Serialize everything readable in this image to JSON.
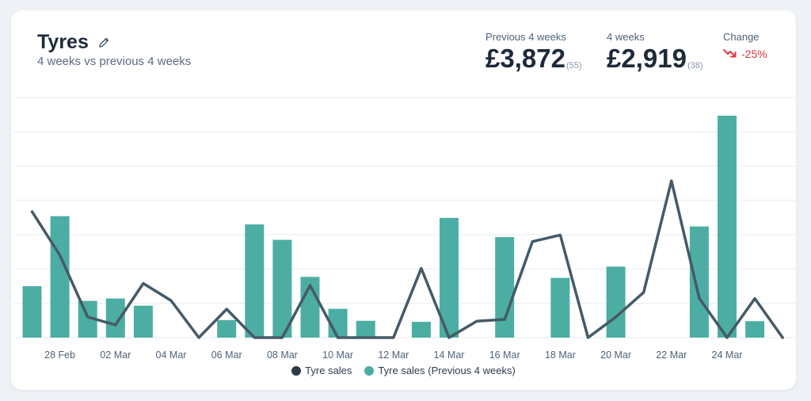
{
  "header": {
    "title": "Tyres",
    "subtitle": "4 weeks vs previous 4 weeks",
    "edit_icon": "pencil-icon"
  },
  "stats": {
    "previous": {
      "label": "Previous 4 weeks",
      "value": "£3,872",
      "count": "(55)"
    },
    "current": {
      "label": "4 weeks",
      "value": "£2,919",
      "count": "(38)"
    },
    "change": {
      "label": "Change",
      "value": "-25%",
      "icon": "trend-down-icon",
      "color": "#e0373d"
    }
  },
  "colors": {
    "line": "#455a67",
    "bar": "#4caea3",
    "grid": "#e8ebef"
  },
  "chart_data": {
    "type": "bar",
    "x_tick_labels": [
      "28 Feb",
      "02 Mar",
      "04 Mar",
      "06 Mar",
      "08 Mar",
      "10 Mar",
      "12 Mar",
      "14 Mar",
      "16 Mar",
      "18 Mar",
      "20 Mar",
      "22 Mar",
      "24 Mar"
    ],
    "ylim": [
      0,
      700
    ],
    "y_gridlines": [
      0,
      100,
      200,
      300,
      400,
      500,
      600,
      700
    ],
    "grid": true,
    "legend_position": "bottom",
    "series": [
      {
        "name": "Tyre sales",
        "type": "line",
        "values": [
          367,
          240,
          60,
          37,
          158,
          108,
          0,
          83,
          0,
          0,
          152,
          0,
          0,
          0,
          202,
          0,
          48,
          53,
          280,
          299,
          0,
          60,
          132,
          457,
          115,
          0,
          114,
          0
        ]
      },
      {
        "name": "Tyre sales (Previous 4 weeks)",
        "type": "bar",
        "values": [
          150,
          354,
          107,
          114,
          93,
          0,
          0,
          51,
          330,
          285,
          177,
          84,
          49,
          0,
          46,
          349,
          0,
          293,
          0,
          174,
          0,
          207,
          0,
          0,
          324,
          647,
          48,
          0
        ]
      }
    ]
  },
  "legend": [
    {
      "label": "Tyre sales",
      "color": "#2b3a47"
    },
    {
      "label": "Tyre sales (Previous 4 weeks)",
      "color": "#4caea3"
    }
  ]
}
